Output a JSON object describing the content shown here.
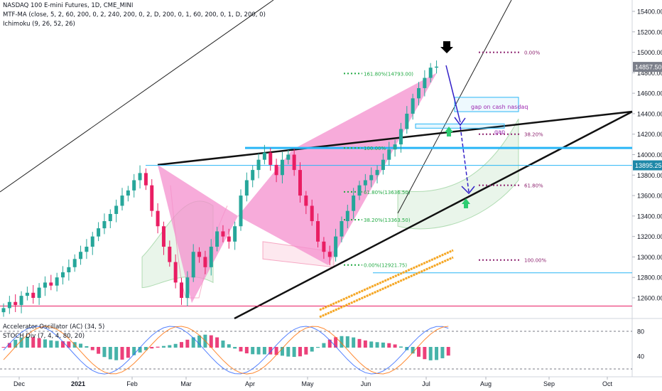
{
  "header": {
    "line1": "NASDAQ 100 E-mini Futures, 1D, CME_MINI",
    "line2": "MTF-MA (close, 5, 2, 60, 200, 0, 2, 240, 200, 0, 2, D, 200, 0, 1, 60, 200, 0, 1, D, 200, 0)",
    "line3": "Ichimoku (9, 26, 52, 26)",
    "osc1": "Accelerator Oscillator (AC) (34, 5)",
    "osc2": "STOCH Div (7, 4, 4, 80, 20)"
  },
  "colors": {
    "up": "#26a69a",
    "down": "#e91e63",
    "pink_pattern": "#f48fce",
    "cyan": "#29b6f6",
    "trendline": "#111111",
    "fib_green": "#22aa44",
    "fib_purple": "#8e2470",
    "arrow": "#3320c8",
    "price_label_bg": "#7b7f8a",
    "orange_ma": "#f5a623"
  },
  "chart_data": {
    "type": "candlestick",
    "yaxis": {
      "ticks": [
        15400,
        15200,
        15000,
        14800,
        14600,
        14400,
        14200,
        14000,
        13800,
        13600,
        13400,
        13200,
        13000,
        12800,
        12600
      ],
      "ylim": [
        12450,
        15470
      ]
    },
    "xaxis": {
      "ticks": [
        "Dec",
        "2021",
        "Feb",
        "Mar",
        "Apr",
        "May",
        "Jun",
        "Jul",
        "Aug",
        "Sep",
        "Oct"
      ]
    },
    "price_labels": [
      "14857.50",
      "13895.25"
    ],
    "fib_levels_left": [
      "161.80%(14793.00)",
      "100.00%",
      "61.80%(13636.50)",
      "38.20%(13363.50)",
      "0.00%(12921.75)"
    ],
    "fib_levels_right": [
      "0.00%",
      "38.20%",
      "61.80%",
      "100.00%"
    ],
    "annotations": [
      "gap on cash nasdaq",
      "gap"
    ],
    "oscillator_ticks": [
      "80",
      "40"
    ],
    "closes_approx": [
      12500,
      12560,
      12530,
      12620,
      12650,
      12600,
      12700,
      12750,
      12720,
      12800,
      12850,
      12900,
      12980,
      13050,
      13100,
      13200,
      13280,
      13350,
      13420,
      13500,
      13600,
      13650,
      13750,
      13820,
      13700,
      13450,
      13300,
      13100,
      12950,
      12750,
      12600,
      12800,
      13050,
      13000,
      12900,
      13100,
      13250,
      13200,
      13150,
      13300,
      13600,
      13750,
      13850,
      13950,
      14020,
      13900,
      13800,
      13950,
      14000,
      13850,
      13600,
      13500,
      13350,
      13150,
      13050,
      13000,
      13200,
      13350,
      13450,
      13600,
      13700,
      13750,
      13800,
      13850,
      13950,
      14050,
      14100,
      14250,
      14400,
      14550,
      14650,
      14750,
      14850,
      14860
    ]
  }
}
